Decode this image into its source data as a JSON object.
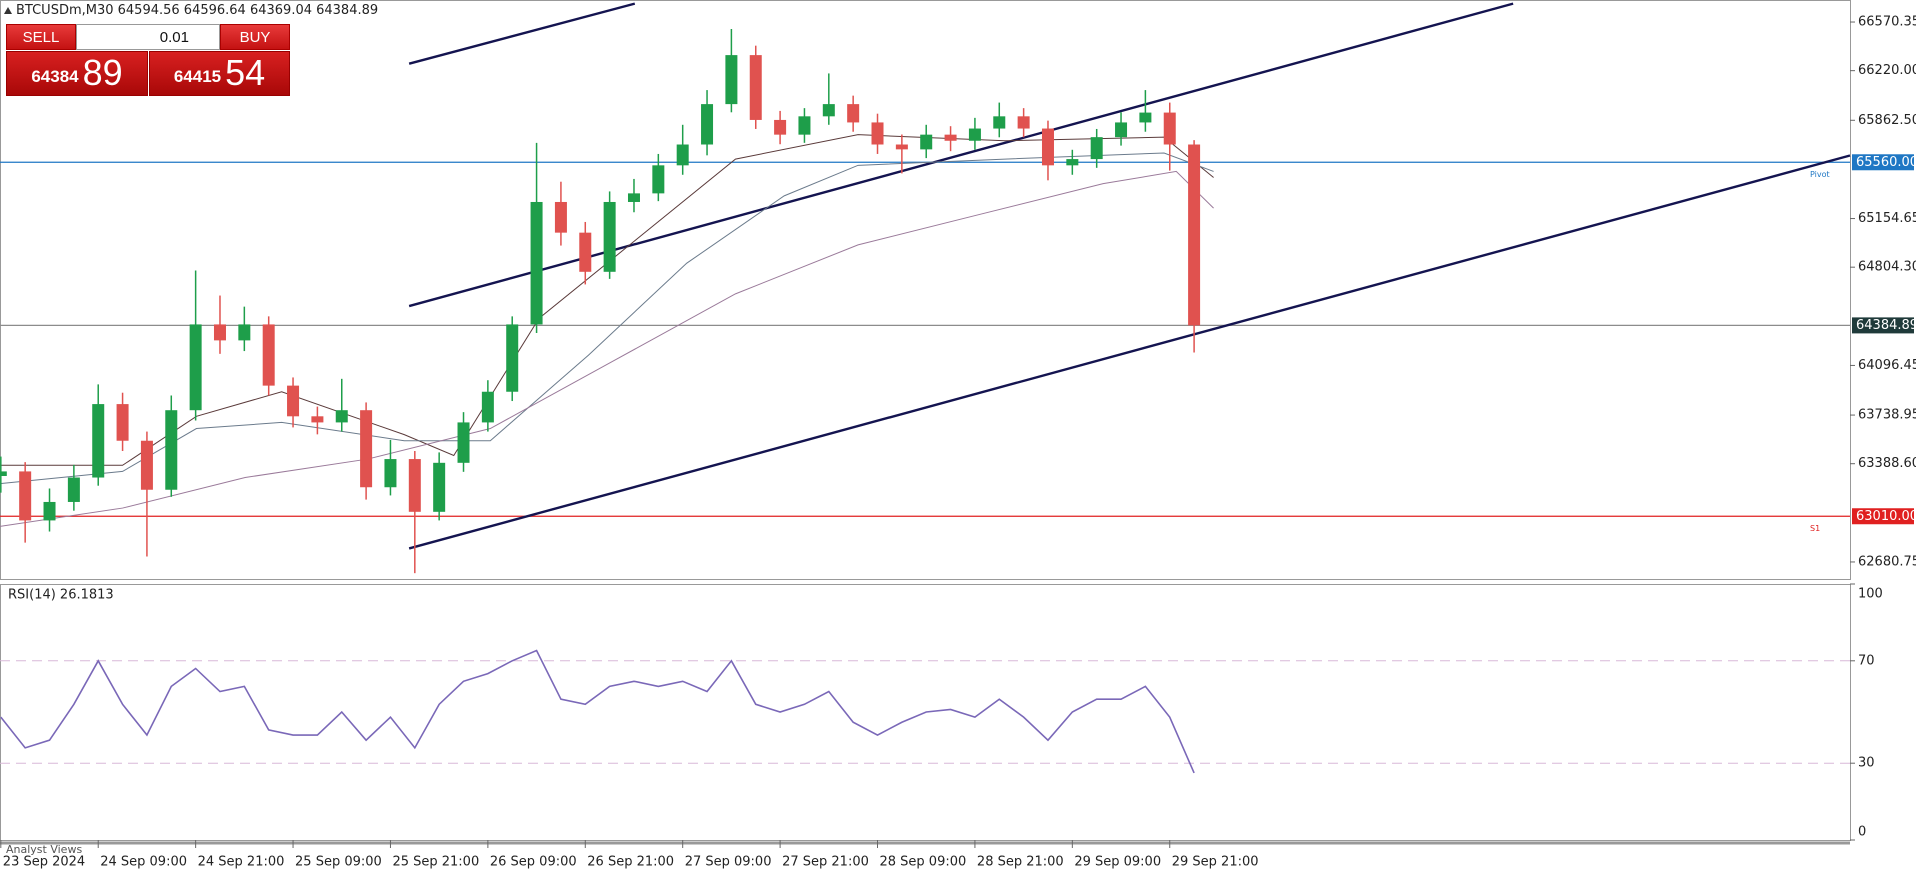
{
  "header": {
    "symbol_info": "BTCUSDm,M30  64594.56 64596.64 64369.04 64384.89"
  },
  "trade_panel": {
    "sell": "SELL",
    "volume": "0.01",
    "buy": "BUY",
    "bid_main": "64384",
    "bid_big": "89",
    "ask_main": "64415",
    "ask_big": "54"
  },
  "footer": {
    "tab": "Analyst Views"
  },
  "chart_data": [
    {
      "type": "candlestick",
      "x": [
        -3,
        0,
        3,
        6,
        9,
        12,
        15,
        18,
        21,
        24,
        27,
        30,
        33,
        36,
        39,
        42,
        45,
        48,
        51,
        54,
        57,
        60,
        63,
        66,
        69,
        72,
        75,
        78,
        81,
        84,
        87,
        90,
        93,
        96,
        99,
        102,
        105,
        108,
        111,
        114,
        117,
        120,
        123,
        126,
        129,
        132,
        135,
        138,
        141,
        144
      ],
      "open": [
        63300,
        63333,
        62980,
        63113,
        63289,
        63818,
        63554,
        63201,
        63774,
        64392,
        64277,
        64392,
        63951,
        63730,
        63686,
        63774,
        63219,
        63422,
        63042,
        63395,
        63686,
        63907,
        64392,
        65274,
        65053,
        64771,
        65274,
        65336,
        65538,
        65688,
        65979,
        66332,
        65865,
        65759,
        65891,
        65979,
        65847,
        65688,
        65653,
        65759,
        65715,
        65803,
        65891,
        65803,
        65538,
        65583,
        65741,
        65847,
        65918,
        65688
      ],
      "high": [
        63440,
        63400,
        63210,
        63380,
        63960,
        63900,
        63620,
        63880,
        64780,
        64600,
        64520,
        64450,
        64010,
        63800,
        64000,
        63830,
        63560,
        63480,
        63470,
        63760,
        63990,
        64450,
        65700,
        65420,
        65130,
        65350,
        65440,
        65620,
        65830,
        66080,
        66520,
        66400,
        65930,
        65950,
        66200,
        66040,
        65910,
        65760,
        65830,
        65820,
        65880,
        65990,
        65950,
        65860,
        65650,
        65800,
        65920,
        66080,
        65990,
        65720
      ],
      "low": [
        63180,
        62820,
        62900,
        63050,
        63230,
        63480,
        62720,
        63150,
        63700,
        64180,
        64200,
        63880,
        63650,
        63600,
        63620,
        63130,
        63160,
        62600,
        62980,
        63330,
        63620,
        63840,
        64330,
        64960,
        64680,
        64720,
        65200,
        65280,
        65470,
        65610,
        65920,
        65800,
        65690,
        65700,
        65830,
        65780,
        65620,
        65480,
        65590,
        65640,
        65650,
        65740,
        65740,
        65430,
        65470,
        65520,
        65680,
        65780,
        65500,
        64190
      ],
      "close": [
        63333,
        62980,
        63113,
        63289,
        63818,
        63554,
        63201,
        63774,
        64392,
        64277,
        64392,
        63951,
        63730,
        63686,
        63774,
        63219,
        63422,
        63042,
        63395,
        63686,
        63907,
        64392,
        65274,
        65053,
        64771,
        65274,
        65336,
        65538,
        65688,
        65979,
        66332,
        65865,
        65759,
        65891,
        65979,
        65847,
        65688,
        65653,
        65759,
        65715,
        65803,
        65891,
        65803,
        65538,
        65583,
        65741,
        65847,
        65918,
        65688,
        64384.89
      ],
      "up_color": "#1e9e4a",
      "down_color": "#e0524f",
      "overlays": [
        {
          "color": "#5a3a3a",
          "x": [
            -3.1,
            12,
            21.1,
            31.6,
            46.7,
            52.8,
            63.3,
            75.4,
            87.5,
            102.6,
            120.7,
            140.3,
            146.4
          ],
          "values": [
            63377,
            63377,
            63730,
            63907,
            63598,
            63448,
            64436,
            65009,
            65583,
            65759,
            65715,
            65741,
            65450
          ]
        },
        {
          "color": "#6b7b8c",
          "x": [
            -3.1,
            12,
            21.1,
            31.6,
            46.7,
            57.3,
            69.4,
            81.5,
            93.5,
            102.6,
            120.7,
            140.3,
            146.4
          ],
          "values": [
            63245,
            63333,
            63642,
            63686,
            63554,
            63554,
            64171,
            64833,
            65318,
            65538,
            65583,
            65627,
            65494
          ]
        },
        {
          "color": "#9a7a9a",
          "x": [
            -3.1,
            12,
            27.1,
            42.2,
            57.3,
            72.4,
            87.5,
            102.6,
            117.7,
            132.8,
            141.8,
            146.4
          ],
          "values": [
            62937,
            63069,
            63289,
            63422,
            63642,
            64127,
            64612,
            64965,
            65186,
            65406,
            65494,
            65230
          ]
        }
      ],
      "trend_lines": [
        {
          "color": "#141450",
          "x": [
            47.3,
            75.1
          ],
          "y": [
            66270,
            66703
          ]
        },
        {
          "color": "#141450",
          "x": [
            47.3,
            183.3
          ],
          "y": [
            64524,
            66703
          ]
        },
        {
          "color": "#141450",
          "x": [
            47.3,
            224.8
          ],
          "y": [
            62778,
            65609
          ]
        }
      ],
      "hlines": [
        {
          "value": 65560,
          "label": "65560.00",
          "color": "#1f77c4",
          "tag": "Pivot"
        },
        {
          "value": 63010,
          "label": "63010.00",
          "color": "#e02020",
          "tag": "S1"
        },
        {
          "value": 64384.89,
          "color": "#8c8c8c"
        }
      ],
      "xlim": [
        -3.1,
        224.8
      ],
      "ylim": [
        62558,
        66729
      ],
      "yticks": [
        {
          "value": 66570.35,
          "label": "66570.35"
        },
        {
          "value": 66220,
          "label": "66220.00"
        },
        {
          "value": 65862.5,
          "label": "65862.50"
        },
        {
          "value": 65154.65,
          "label": "65154.65"
        },
        {
          "value": 64804.3,
          "label": "64804.30"
        },
        {
          "value": 64096.45,
          "label": "64096.45"
        },
        {
          "value": 63738.95,
          "label": "63738.95"
        },
        {
          "value": 63388.6,
          "label": "63388.60"
        },
        {
          "value": 62680.75,
          "label": "62680.75"
        }
      ],
      "xticks": [
        {
          "value": -3,
          "label": "23 Sep 2024"
        },
        {
          "value": 9,
          "label": "24 Sep 09:00"
        },
        {
          "value": 21,
          "label": "24 Sep 21:00"
        },
        {
          "value": 33,
          "label": "25 Sep 09:00"
        },
        {
          "value": 45,
          "label": "25 Sep 21:00"
        },
        {
          "value": 57,
          "label": "26 Sep 09:00"
        },
        {
          "value": 69,
          "label": "26 Sep 21:00"
        },
        {
          "value": 81,
          "label": "27 Sep 09:00"
        },
        {
          "value": 93,
          "label": "27 Sep 21:00"
        },
        {
          "value": 105,
          "label": "28 Sep 09:00"
        },
        {
          "value": 117,
          "label": "28 Sep 21:00"
        },
        {
          "value": 129,
          "label": "29 Sep 09:00"
        },
        {
          "value": 141,
          "label": "29 Sep 21:00"
        }
      ]
    },
    {
      "type": "line",
      "title": "RSI(14) 26.1813",
      "color": "#7a68b8",
      "x": [
        -3,
        0,
        3,
        6,
        9,
        12,
        15,
        18,
        21,
        24,
        27,
        30,
        33,
        36,
        39,
        42,
        45,
        48,
        51,
        54,
        57,
        60,
        63,
        66,
        69,
        72,
        75,
        78,
        81,
        84,
        87,
        90,
        93,
        96,
        99,
        102,
        105,
        108,
        111,
        114,
        117,
        120,
        123,
        126,
        129,
        132,
        135,
        138,
        141,
        144
      ],
      "values": [
        48,
        36,
        39,
        53,
        70,
        53,
        41,
        60,
        67,
        58,
        60,
        43,
        41,
        41,
        50,
        39,
        48,
        36,
        53,
        62,
        65,
        70,
        74,
        55,
        53,
        60,
        62,
        60,
        62,
        58,
        70,
        53,
        50,
        53,
        58,
        46,
        41,
        46,
        50,
        51,
        48,
        55,
        48,
        39,
        50,
        55,
        55,
        60,
        48,
        26.1813
      ],
      "levels": [
        70,
        30
      ],
      "level_color": "#d8b8d8",
      "xlim": [
        -3.1,
        224.8
      ],
      "ylim": [
        0,
        100
      ],
      "yticks": [
        100,
        70,
        30,
        0
      ]
    }
  ]
}
